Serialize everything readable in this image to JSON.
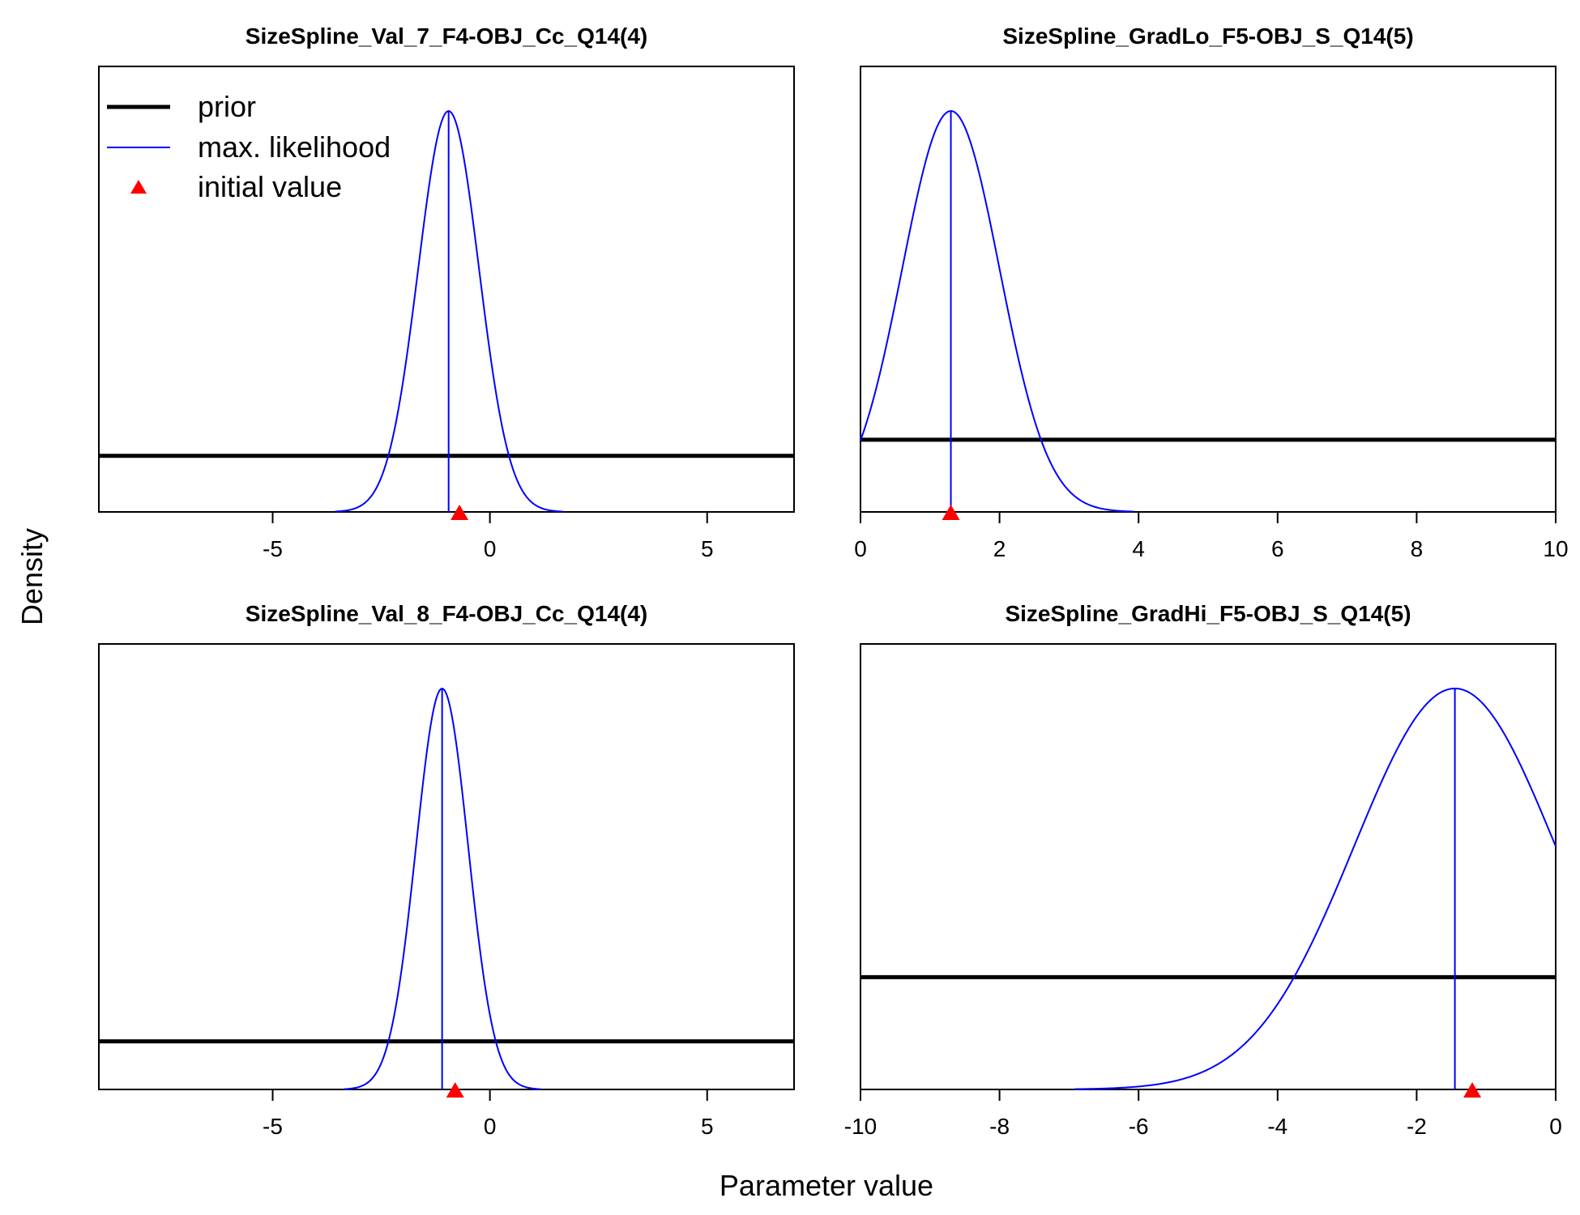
{
  "figure": {
    "xlabel": "Parameter value",
    "ylabel": "Density"
  },
  "legend": {
    "position": "top-left of first panel",
    "items": [
      {
        "label": "prior",
        "color": "#000000",
        "style": "thick-line"
      },
      {
        "label": "max. likelihood",
        "color": "#0000ff",
        "style": "thin-line"
      },
      {
        "label": "initial value",
        "color": "#ff0000",
        "style": "triangle"
      }
    ]
  },
  "chart_data": [
    {
      "type": "line",
      "title": "SizeSpline_Val_7_F4-OBJ_Cc_Q14(4)",
      "xlim": [
        -9,
        7
      ],
      "xticks": [
        -5,
        0,
        5
      ],
      "prior_density": 0.14,
      "ml_mean": -0.95,
      "ml_sd": 0.7,
      "initial_value": -0.7,
      "show_legend": true
    },
    {
      "type": "line",
      "title": "SizeSpline_GradLo_F5-OBJ_S_Q14(5)",
      "xlim": [
        0,
        10
      ],
      "xticks": [
        0,
        2,
        4,
        6,
        8,
        10
      ],
      "prior_density": 0.18,
      "ml_mean": 1.3,
      "ml_sd": 0.7,
      "initial_value": 1.3,
      "show_legend": false
    },
    {
      "type": "line",
      "title": "SizeSpline_Val_8_F4-OBJ_Cc_Q14(4)",
      "xlim": [
        -9,
        7
      ],
      "xticks": [
        -5,
        0,
        5
      ],
      "prior_density": 0.12,
      "ml_mean": -1.1,
      "ml_sd": 0.6,
      "initial_value": -0.8,
      "show_legend": false
    },
    {
      "type": "line",
      "title": "SizeSpline_GradHi_F5-OBJ_S_Q14(5)",
      "xlim": [
        -10,
        0
      ],
      "xticks": [
        -10,
        -8,
        -6,
        -4,
        -2,
        0
      ],
      "prior_density": 0.28,
      "ml_mean": -1.45,
      "ml_sd": 1.45,
      "initial_value": -1.2,
      "show_legend": false
    }
  ]
}
